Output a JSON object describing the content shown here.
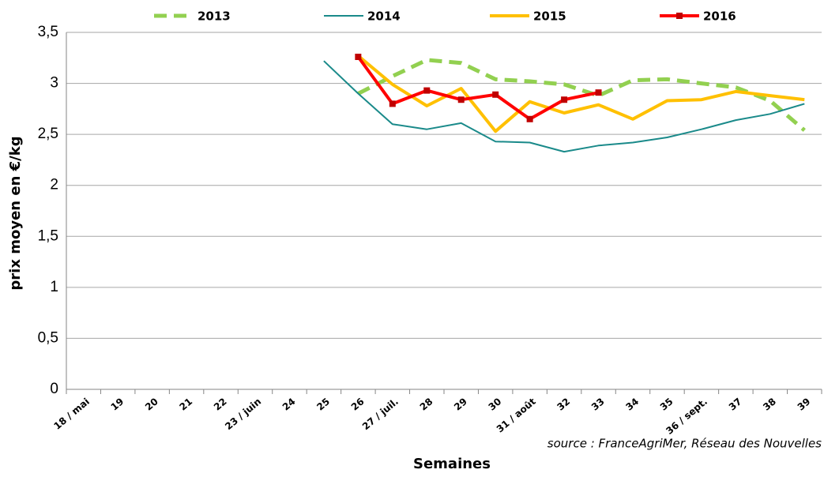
{
  "chart_data": {
    "type": "line",
    "y_label": "prix moyen en €/kg",
    "x_label": "Semaines",
    "source": "source : FranceAgriMer, Réseau des Nouvelles",
    "categories": [
      "18 / mai",
      "19",
      "20",
      "21",
      "22",
      "23 / juin",
      "24",
      "25",
      "26",
      "27 / juil.",
      "28",
      "29",
      "30",
      "31 / août",
      "32",
      "33",
      "34",
      "35",
      "36 / sept.",
      "37",
      "38",
      "39"
    ],
    "series": [
      {
        "name": "2013",
        "color": "#92d050",
        "dash": true,
        "marker": false,
        "values": [
          null,
          null,
          null,
          null,
          null,
          null,
          null,
          null,
          2.9,
          3.07,
          3.23,
          3.2,
          3.04,
          3.02,
          2.99,
          2.88,
          3.03,
          3.04,
          3.0,
          2.96,
          2.83,
          2.54
        ]
      },
      {
        "name": "2014",
        "color": "#1a8a8a",
        "dash": false,
        "marker": false,
        "values": [
          null,
          null,
          null,
          null,
          null,
          null,
          null,
          3.22,
          2.9,
          2.6,
          2.55,
          2.61,
          2.43,
          2.42,
          2.33,
          2.39,
          2.42,
          2.47,
          2.55,
          2.64,
          2.7,
          2.8
        ]
      },
      {
        "name": "2015",
        "color": "#ffc000",
        "dash": false,
        "marker": false,
        "values": [
          null,
          null,
          null,
          null,
          null,
          null,
          null,
          null,
          3.27,
          2.99,
          2.78,
          2.95,
          2.53,
          2.82,
          2.71,
          2.79,
          2.65,
          2.83,
          2.84,
          2.92,
          2.88,
          2.84
        ]
      },
      {
        "name": "2016",
        "color": "#ff0000",
        "dash": false,
        "marker": true,
        "values": [
          null,
          null,
          null,
          null,
          null,
          null,
          null,
          null,
          3.26,
          2.8,
          2.93,
          2.84,
          2.89,
          2.65,
          2.84,
          2.91,
          null,
          null,
          null,
          null,
          null,
          null
        ]
      }
    ],
    "ylim": [
      0,
      3.5
    ],
    "yticks": [
      0,
      {
        "value": 0.5,
        "label": "0,5"
      },
      1,
      {
        "value": 1.5,
        "label": "1,5"
      },
      2,
      {
        "value": 2.5,
        "label": "2,5"
      },
      3,
      {
        "value": 3.5,
        "label": "3,5"
      }
    ],
    "grid": true
  }
}
